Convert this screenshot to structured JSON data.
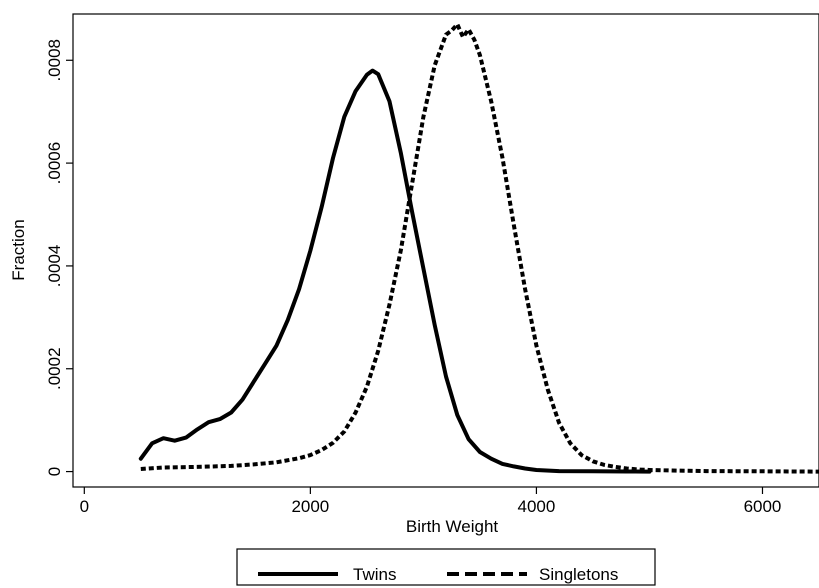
{
  "chart_data": {
    "type": "line",
    "xlabel": "Birth Weight",
    "ylabel": "Fraction",
    "xlim": [
      -100,
      6500
    ],
    "ylim": [
      -3e-05,
      0.00089
    ],
    "xticks": [
      0,
      2000,
      4000,
      6000
    ],
    "xtick_labels": [
      "0",
      "2000",
      "4000",
      "6000"
    ],
    "yticks": [
      0,
      0.0002,
      0.0004,
      0.0006,
      0.0008
    ],
    "ytick_labels": [
      "0",
      ".0002",
      ".0004",
      ".0006",
      ".0008"
    ],
    "grid": false,
    "legend_position": "bottom",
    "series": [
      {
        "name": "Twins",
        "style": "solid",
        "color": "#000000",
        "x": [
          500,
          600,
          700,
          800,
          900,
          1000,
          1100,
          1200,
          1300,
          1400,
          1500,
          1600,
          1700,
          1800,
          1900,
          2000,
          2100,
          2200,
          2300,
          2400,
          2500,
          2550,
          2600,
          2700,
          2800,
          2900,
          3000,
          3100,
          3200,
          3300,
          3400,
          3500,
          3600,
          3700,
          3800,
          3900,
          4000,
          4200,
          4500,
          4800,
          5000
        ],
        "y": [
          2.5e-05,
          5.5e-05,
          6.5e-05,
          6e-05,
          6.6e-05,
          8.2e-05,
          9.6e-05,
          0.000102,
          0.000115,
          0.00014,
          0.000175,
          0.00021,
          0.000245,
          0.000295,
          0.000355,
          0.00043,
          0.000515,
          0.00061,
          0.00069,
          0.00074,
          0.000772,
          0.00078,
          0.000773,
          0.00072,
          0.00062,
          0.000505,
          0.000395,
          0.000285,
          0.000185,
          0.00011,
          6.3e-05,
          3.8e-05,
          2.5e-05,
          1.5e-05,
          1e-05,
          6e-06,
          3e-06,
          1e-06,
          5e-07,
          2e-07,
          0
        ]
      },
      {
        "name": "Singletons",
        "style": "dashed",
        "color": "#000000",
        "x": [
          500,
          700,
          1000,
          1300,
          1500,
          1700,
          1900,
          2000,
          2100,
          2200,
          2300,
          2400,
          2500,
          2600,
          2700,
          2800,
          2900,
          3000,
          3100,
          3200,
          3250,
          3300,
          3350,
          3400,
          3450,
          3500,
          3600,
          3700,
          3800,
          3900,
          4000,
          4100,
          4200,
          4300,
          4400,
          4500,
          4600,
          4700,
          4800,
          4900,
          5000,
          5200,
          5500,
          6000,
          6500
        ],
        "y": [
          5e-06,
          8e-06,
          9e-06,
          1.1e-05,
          1.4e-05,
          1.8e-05,
          2.6e-05,
          3.2e-05,
          4.2e-05,
          5.6e-05,
          7.8e-05,
          0.000115,
          0.000165,
          0.000235,
          0.000325,
          0.00043,
          0.00056,
          0.00069,
          0.00079,
          0.00085,
          0.000858,
          0.00087,
          0.000845,
          0.00086,
          0.00084,
          0.00081,
          0.00072,
          0.00061,
          0.00048,
          0.000355,
          0.000245,
          0.00016,
          9.5e-05,
          5.5e-05,
          3.2e-05,
          2e-05,
          1.3e-05,
          9e-06,
          6e-06,
          4e-06,
          3e-06,
          2e-06,
          1e-06,
          5e-07,
          0
        ]
      }
    ]
  }
}
